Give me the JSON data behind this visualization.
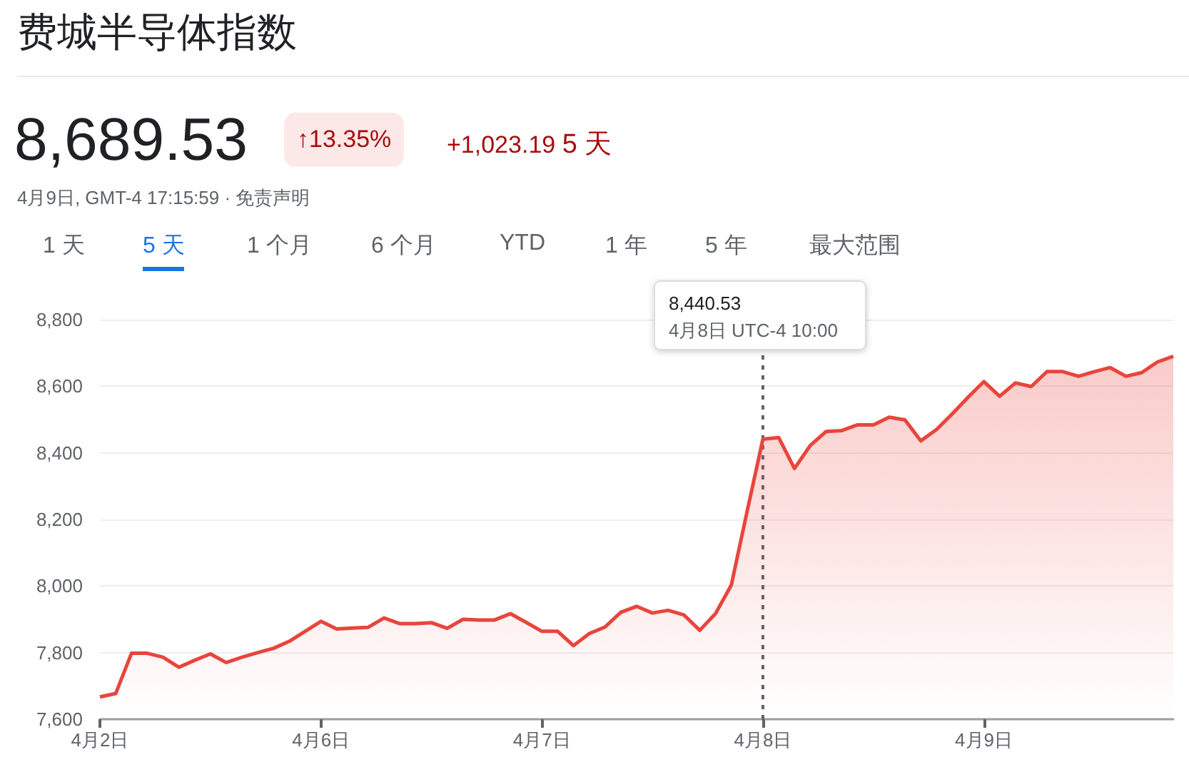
{
  "chart_data": {
    "type": "area",
    "title": "费城半导体指数",
    "annotations": [
      "8,689.53",
      "↑13.35%",
      "+1,023.19",
      "5 天",
      "4月9日, GMT-4 17:15:59 · 免责声明",
      "1 天",
      "5 天",
      "1 个月",
      "6 个月",
      "YTD",
      "1 年",
      "5 年",
      "最大范围",
      "8,440.53\n4月8日 UTC-4 10:00"
    ],
    "ref_lines": [
      {
        "axis": "x",
        "value": "4月8日",
        "color": "#5f6368",
        "line_style": "dotted"
      }
    ],
    "categories": [
      "4月2日",
      null,
      null,
      null,
      null,
      null,
      null,
      null,
      null,
      null,
      null,
      null,
      null,
      null,
      "4月6日",
      null,
      null,
      null,
      null,
      null,
      null,
      null,
      null,
      null,
      null,
      null,
      null,
      null,
      "4月7日",
      null,
      null,
      null,
      null,
      null,
      null,
      null,
      null,
      null,
      null,
      null,
      null,
      null,
      "4月8日",
      null,
      null,
      null,
      null,
      null,
      null,
      null,
      null,
      null,
      null,
      null,
      null,
      null,
      "4月9日",
      null,
      null,
      null,
      null,
      null,
      null,
      null,
      null,
      null,
      null,
      null,
      null
    ],
    "series": [
      {
        "color": "#e8453c",
        "values": [
          7667,
          7677,
          7798,
          7798,
          7786,
          7756,
          7777,
          7796,
          7770,
          7786,
          7800,
          7813,
          7834,
          7864,
          7894,
          7871,
          7874,
          7876,
          7904,
          7887,
          7887,
          7890,
          7873,
          7900,
          7898,
          7898,
          7917,
          7891,
          7864,
          7864,
          7821,
          7857,
          7877,
          7921,
          7939,
          7919,
          7927,
          7913,
          7867,
          7917,
          8003,
          8224,
          8441,
          8446,
          8353,
          8422,
          8464,
          8467,
          8484,
          8484,
          8507,
          8499,
          8436,
          8470,
          8517,
          8567,
          8614,
          8570,
          8610,
          8599,
          8644,
          8644,
          8630,
          8644,
          8656,
          8630,
          8641,
          8673,
          8690
        ]
      }
    ],
    "ylim": [
      7600,
      8800
    ],
    "yticks": [
      {
        "value": 7600,
        "label": "7,600"
      },
      {
        "value": 7800,
        "label": "7,800"
      },
      {
        "value": 8000,
        "label": "8,000"
      },
      {
        "value": 8200,
        "label": "8,200"
      },
      {
        "value": 8400,
        "label": "8,400"
      },
      {
        "value": 8600,
        "label": "8,600"
      },
      {
        "value": 8800,
        "label": "8,800"
      }
    ],
    "grid": "y",
    "marker": "none",
    "line_style": "solid"
  }
}
